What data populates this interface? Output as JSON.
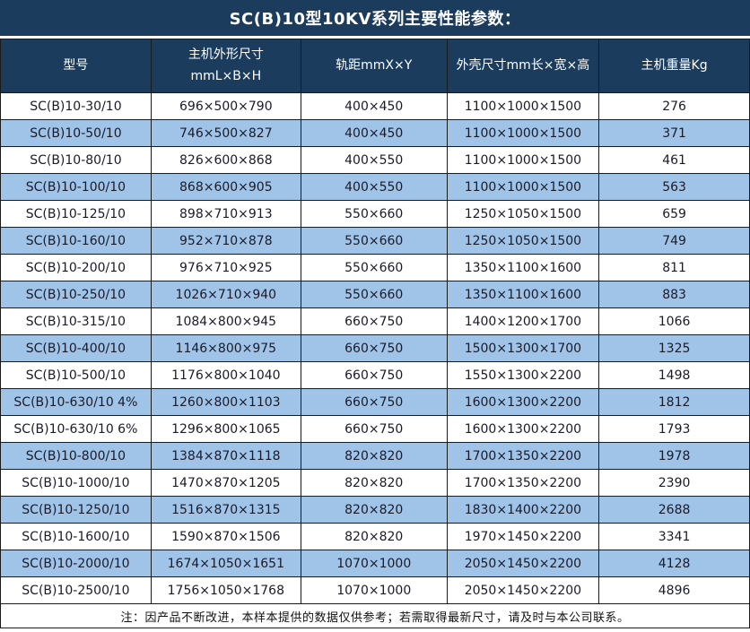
{
  "title": "SC(B)10型10KV系列主要性能参数：",
  "note": "注：因产品不断改进，本样本提供的数据仅供参考；若需取得最新尺寸，请及时与本公司联系。",
  "colors": {
    "header_bg": "#1c3c5e",
    "alt_row_bg": "#a0c3e8",
    "border": "#1a1a1a",
    "header_text": "#ffffff",
    "body_text": "#1b1b28"
  },
  "table": {
    "headers": [
      {
        "label": "型号"
      },
      {
        "label": "主机外形尺寸",
        "label2": "mmL×B×H"
      },
      {
        "label": "轨距mmX×Y"
      },
      {
        "label": "外壳尺寸mm长×宽×高"
      },
      {
        "label": "主机重量Kg"
      }
    ],
    "rows": [
      [
        "SC(B)10-30/10",
        "696×500×790",
        "400×450",
        "1100×1000×1500",
        "276"
      ],
      [
        "SC(B)10-50/10",
        "746×500×827",
        "400×450",
        "1100×1000×1500",
        "371"
      ],
      [
        "SC(B)10-80/10",
        "826×600×868",
        "400×550",
        "1100×1000×1500",
        "461"
      ],
      [
        "SC(B)10-100/10",
        "868×600×905",
        "400×550",
        "1100×1000×1500",
        "563"
      ],
      [
        "SC(B)10-125/10",
        "898×710×913",
        "550×660",
        "1250×1050×1500",
        "659"
      ],
      [
        "SC(B)10-160/10",
        "952×710×878",
        "550×660",
        "1250×1050×1500",
        "749"
      ],
      [
        "SC(B)10-200/10",
        "976×710×925",
        "550×660",
        "1350×1100×1600",
        "811"
      ],
      [
        "SC(B)10-250/10",
        "1026×710×940",
        "550×660",
        "1350×1100×1600",
        "883"
      ],
      [
        "SC(B)10-315/10",
        "1084×800×945",
        "660×750",
        "1400×1200×1700",
        "1066"
      ],
      [
        "SC(B)10-400/10",
        "1146×800×975",
        "660×750",
        "1500×1300×1700",
        "1325"
      ],
      [
        "SC(B)10-500/10",
        "1176×800×1040",
        "660×750",
        "1550×1300×2200",
        "1498"
      ],
      [
        "SC(B)10-630/10 4%",
        "1260×800×1103",
        "660×750",
        "1600×1300×2200",
        "1812"
      ],
      [
        "SC(B)10-630/10 6%",
        "1296×800×1065",
        "660×750",
        "1600×1300×2200",
        "1793"
      ],
      [
        "SC(B)10-800/10",
        "1384×870×1118",
        "820×820",
        "1700×1350×2200",
        "1978"
      ],
      [
        "SC(B)10-1000/10",
        "1470×870×1205",
        "820×820",
        "1700×1350×2200",
        "2390"
      ],
      [
        "SC(B)10-1250/10",
        "1516×870×1315",
        "820×820",
        "1830×1400×2200",
        "2688"
      ],
      [
        "SC(B)10-1600/10",
        "1590×870×1506",
        "820×820",
        "1970×1450×2200",
        "3341"
      ],
      [
        "SC(B)10-2000/10",
        "1674×1050×1651",
        "1070×1000",
        "2050×1450×2200",
        "4128"
      ],
      [
        "SC(B)10-2500/10",
        "1756×1050×1768",
        "1070×1000",
        "2050×1450×2200",
        "4896"
      ]
    ]
  }
}
